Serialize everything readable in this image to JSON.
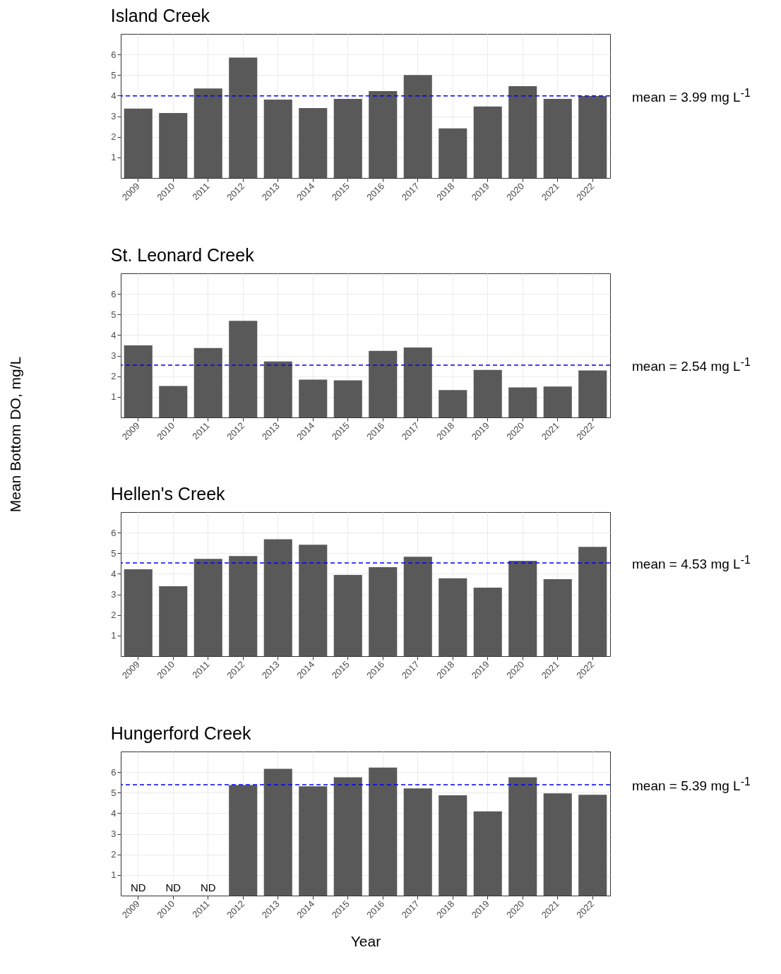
{
  "chart_data": [
    {
      "type": "bar",
      "title": "Island Creek",
      "categories": [
        "2009",
        "2010",
        "2011",
        "2012",
        "2013",
        "2014",
        "2015",
        "2016",
        "2017",
        "2018",
        "2019",
        "2020",
        "2021",
        "2022"
      ],
      "values": [
        3.37,
        3.16,
        4.35,
        5.85,
        3.81,
        3.4,
        3.84,
        4.22,
        5.0,
        2.41,
        3.47,
        4.46,
        3.84,
        3.98
      ],
      "color": "#595959",
      "ylim": [
        0,
        7
      ],
      "yticks": [
        1,
        2,
        3,
        4,
        5,
        6
      ],
      "grid": true,
      "ref_lines": [
        {
          "axis": "y",
          "value": 3.99,
          "label": "mean = 3.99 mg L$^{-1}$",
          "color": "#0000ff",
          "line_style": "dashed"
        }
      ]
    },
    {
      "type": "bar",
      "title": "St. Leonard Creek",
      "ylabel": "Mean Bottom DO, mg/L",
      "categories": [
        "2009",
        "2010",
        "2011",
        "2012",
        "2013",
        "2014",
        "2015",
        "2016",
        "2017",
        "2018",
        "2019",
        "2020",
        "2021",
        "2022"
      ],
      "values": [
        3.5,
        1.53,
        3.37,
        4.69,
        2.72,
        1.84,
        1.8,
        3.23,
        3.4,
        1.33,
        2.31,
        1.46,
        1.5,
        2.28
      ],
      "color": "#595959",
      "ylim": [
        0,
        7
      ],
      "yticks": [
        1,
        2,
        3,
        4,
        5,
        6
      ],
      "grid": true,
      "ref_lines": [
        {
          "axis": "y",
          "value": 2.54,
          "label": "mean = 2.54 mg L$^{-1}$",
          "color": "#0000ff",
          "line_style": "dashed"
        }
      ]
    },
    {
      "type": "bar",
      "title": "Hellen's Creek",
      "categories": [
        "2009",
        "2010",
        "2011",
        "2012",
        "2013",
        "2014",
        "2015",
        "2016",
        "2017",
        "2018",
        "2019",
        "2020",
        "2021",
        "2022"
      ],
      "values": [
        4.22,
        3.4,
        4.73,
        4.86,
        5.68,
        5.41,
        3.95,
        4.32,
        4.83,
        3.78,
        3.33,
        4.63,
        3.74,
        5.31
      ],
      "color": "#595959",
      "ylim": [
        0,
        7
      ],
      "yticks": [
        1,
        2,
        3,
        4,
        5,
        6
      ],
      "grid": true,
      "ref_lines": [
        {
          "axis": "y",
          "value": 4.53,
          "label": "mean = 4.53 mg L$^{-1}$",
          "color": "#0000ff",
          "line_style": "dashed"
        }
      ]
    },
    {
      "type": "bar",
      "title": "Hungerford Creek",
      "xlabel": "Year",
      "categories": [
        "2009",
        "2010",
        "2011",
        "2012",
        "2013",
        "2014",
        "2015",
        "2016",
        "2017",
        "2018",
        "2019",
        "2020",
        "2021",
        "2022"
      ],
      "values": [
        null,
        null,
        null,
        5.37,
        6.16,
        5.31,
        5.75,
        6.22,
        5.21,
        4.87,
        4.09,
        5.75,
        4.97,
        4.9
      ],
      "value_labels": [
        "ND",
        "ND",
        "ND",
        null,
        null,
        null,
        null,
        null,
        null,
        null,
        null,
        null,
        null,
        null
      ],
      "color": "#595959",
      "ylim": [
        0,
        7
      ],
      "yticks": [
        1,
        2,
        3,
        4,
        5,
        6
      ],
      "grid": true,
      "ref_lines": [
        {
          "axis": "y",
          "value": 5.39,
          "label": "mean = 5.39 mg L$^{-1}$",
          "color": "#0000ff",
          "line_style": "dashed"
        }
      ]
    }
  ]
}
